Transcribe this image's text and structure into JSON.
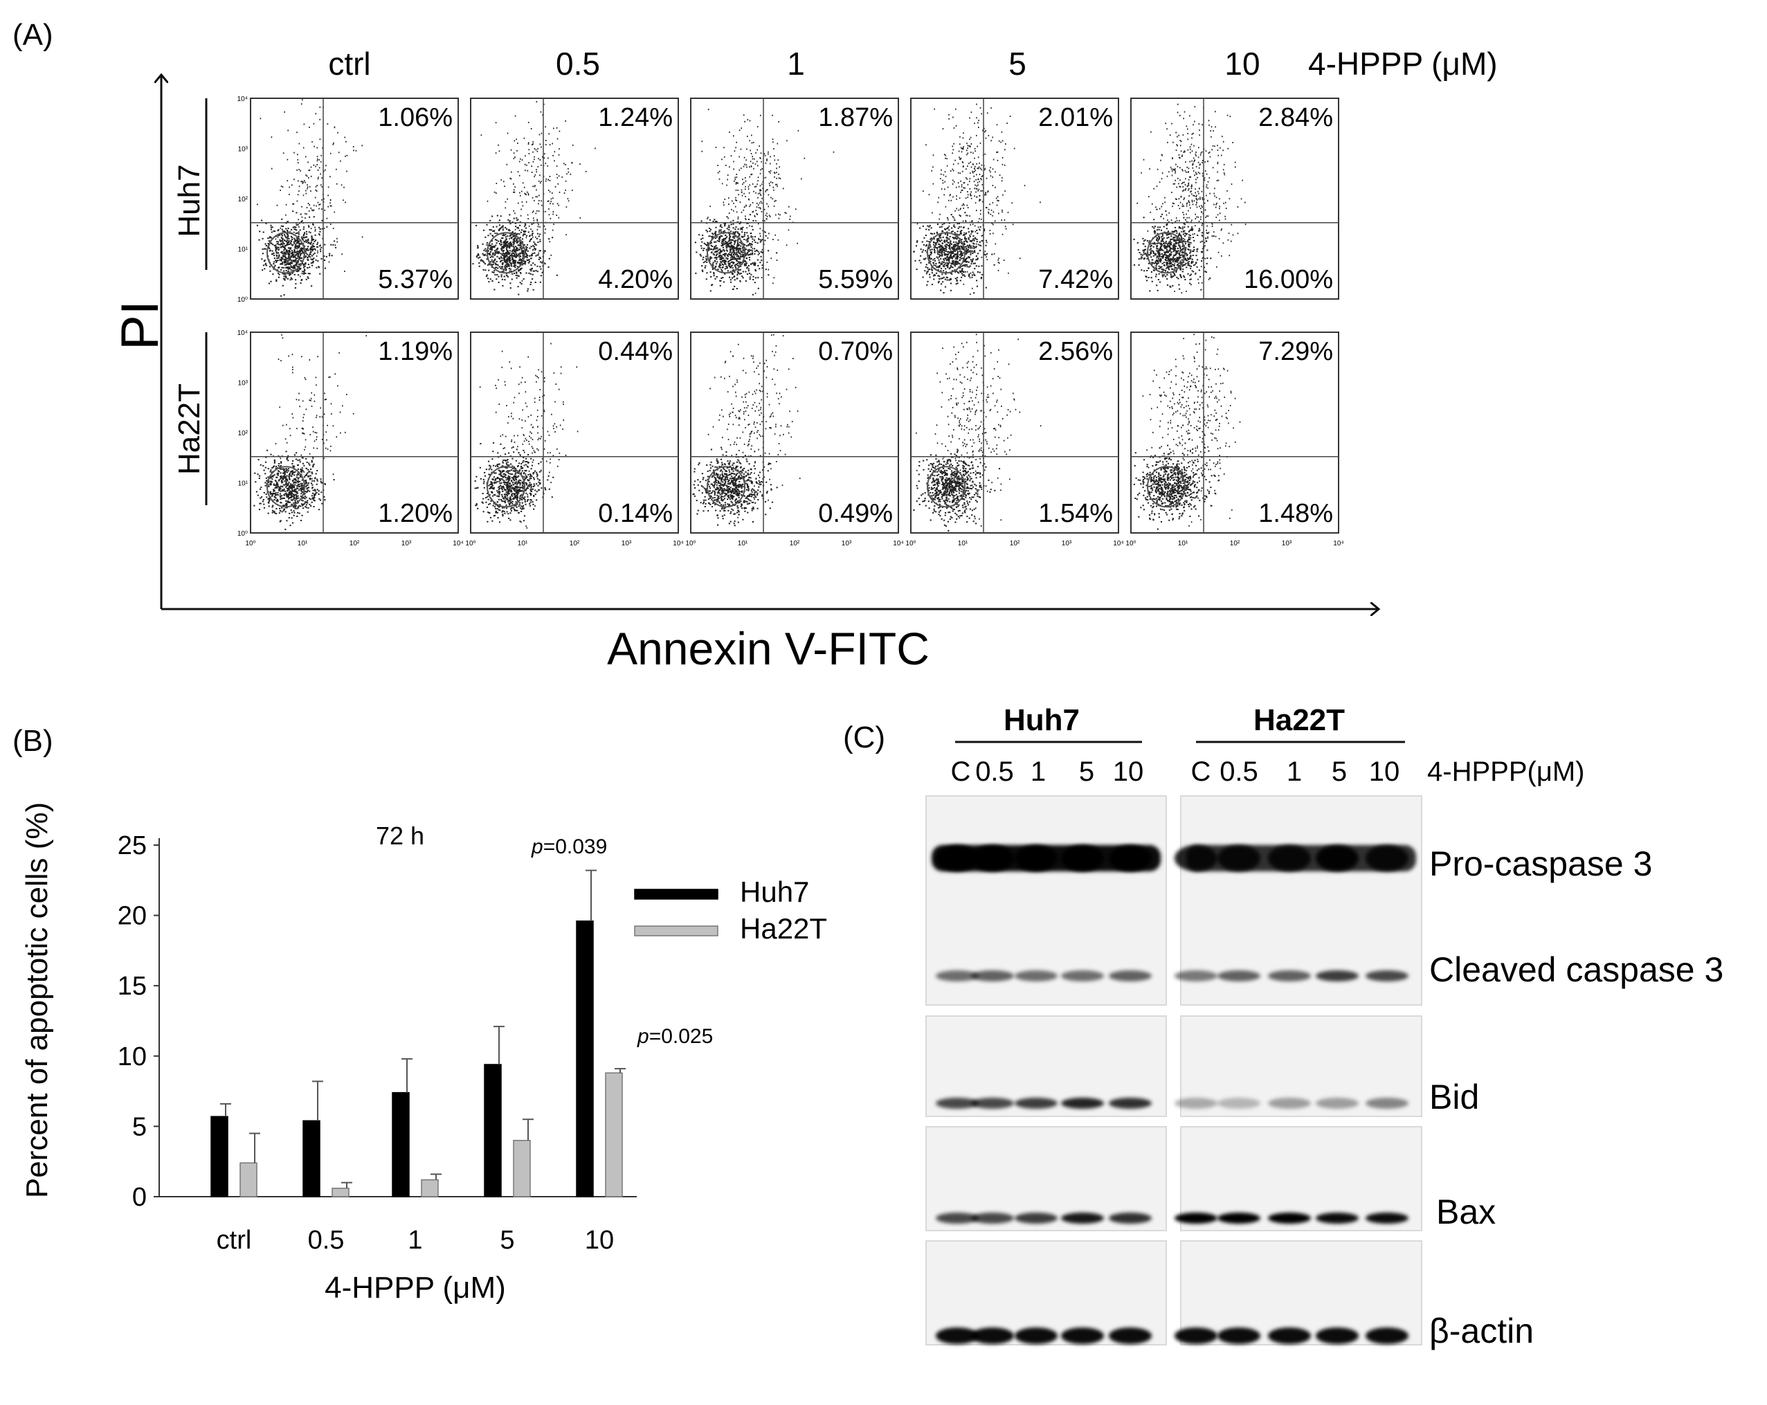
{
  "panelA": {
    "label": "(A)",
    "y_axis_label": "PI",
    "x_axis_label": "Annexin V-FITC",
    "concentration_title": "4-HPPP (μM)",
    "columns": [
      "ctrl",
      "0.5",
      "1",
      "5",
      "10"
    ],
    "rows": [
      {
        "cell_line": "Huh7",
        "upper_right": [
          "1.06%",
          "1.24%",
          "1.87%",
          "2.01%",
          "2.84%"
        ],
        "lower_right": [
          "5.37%",
          "4.20%",
          "5.59%",
          "7.42%",
          "16.00%"
        ]
      },
      {
        "cell_line": "Ha22T",
        "upper_right": [
          "1.19%",
          "0.44%",
          "0.70%",
          "2.56%",
          "7.29%"
        ],
        "lower_right": [
          "1.20%",
          "0.14%",
          "0.49%",
          "1.54%",
          "1.48%"
        ]
      }
    ],
    "x_ticks": [
      "10⁰",
      "10¹",
      "10²",
      "10³",
      "10⁴"
    ],
    "y_ticks": [
      "10⁰",
      "10¹",
      "10²",
      "10³",
      "10⁴"
    ]
  },
  "panelB": {
    "label": "(B)",
    "annotation_time": "72 h",
    "p_values": [
      "=0.039",
      "=0.025"
    ],
    "p_symbol": "p",
    "chart_data": {
      "type": "bar",
      "categories": [
        "ctrl",
        "0.5",
        "1",
        "5",
        "10"
      ],
      "series": [
        {
          "name": "Huh7",
          "color": "#000000",
          "values": [
            5.7,
            5.4,
            7.4,
            9.4,
            19.6
          ],
          "errors": [
            0.9,
            2.8,
            2.4,
            2.7,
            3.6
          ]
        },
        {
          "name": "Ha22T",
          "color": "#c0c0c0",
          "values": [
            2.4,
            0.6,
            1.2,
            4.0,
            8.8
          ],
          "errors": [
            2.1,
            0.4,
            0.4,
            1.5,
            0.3
          ]
        }
      ],
      "xlabel": "4-HPPP (μM)",
      "ylabel": "Percent of apoptotic cells (%)",
      "ylim": [
        0,
        25
      ],
      "yticks": [
        0,
        5,
        10,
        15,
        20,
        25
      ],
      "legend_position": "top-right",
      "grid": false
    }
  },
  "panelC": {
    "label": "(C)",
    "groups": [
      "Huh7",
      "Ha22T"
    ],
    "lanes": [
      "C",
      "0.5",
      "1",
      "5",
      "10"
    ],
    "treatment": "4-HPPP(μM)",
    "proteins": [
      "Pro-caspase 3",
      "Cleaved caspase 3",
      "Bid",
      "Bax",
      "β-actin"
    ]
  }
}
